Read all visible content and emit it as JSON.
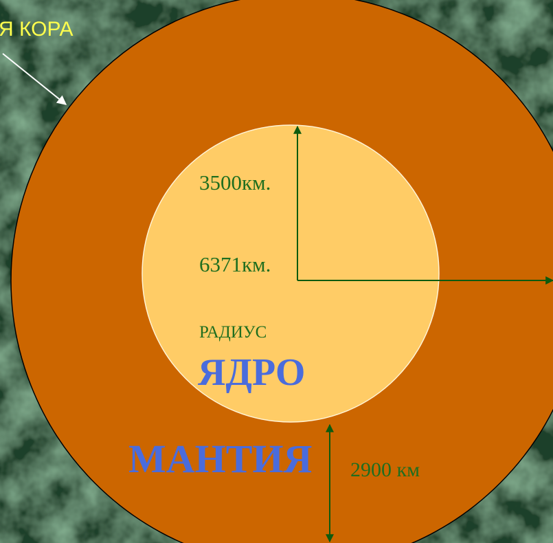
{
  "labels": {
    "crust": "Я КОРА",
    "core_radius": "3500км.",
    "earth_radius": "6371км.",
    "radius_word": "РАДИУС",
    "core": "ЯДРО",
    "mantle": "МАНТИЯ",
    "mantle_thickness": "2900 км"
  },
  "colors": {
    "background": "#2f5a3c",
    "mantle": "#cc6600",
    "core": "#ffcc66",
    "title_text": "#4a6cdc",
    "measure_text": "#1f6e1f",
    "measure_line": "#0e5a0e",
    "crust_label": "#ffff4d",
    "crust_arrow": "#ffffff"
  }
}
